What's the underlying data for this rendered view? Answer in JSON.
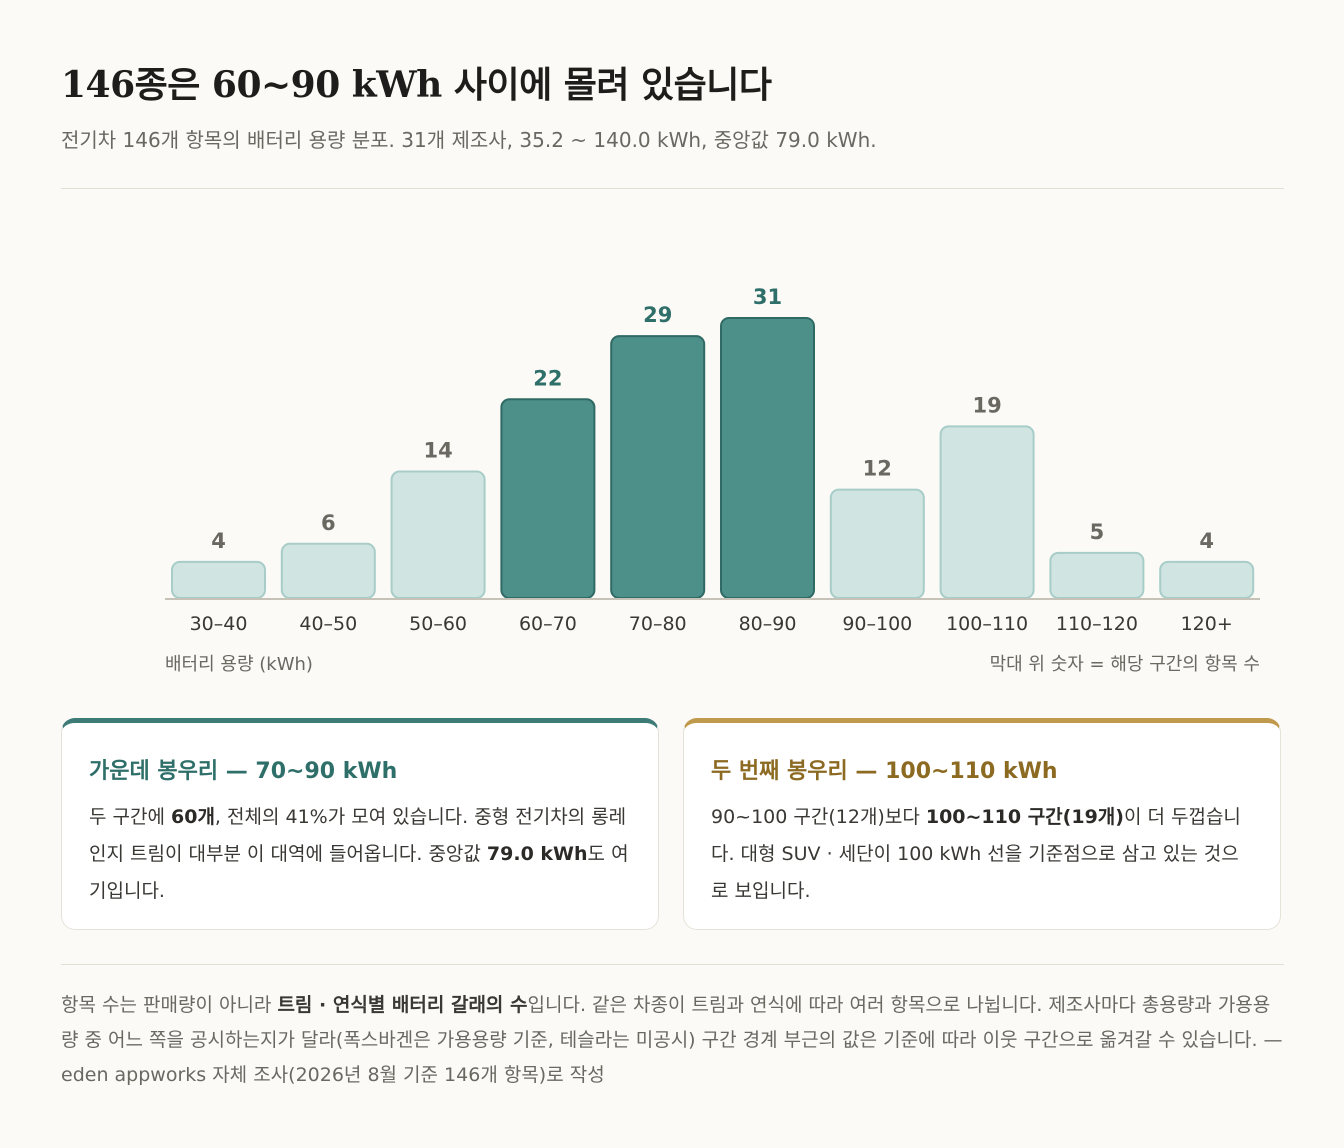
{
  "header": {
    "title": "146종은 60~90 kWh 사이에 몰려 있습니다",
    "subtitle": "전기차 146개 항목의 배터리 용량 분포. 31개 제조사, 35.2 ~ 140.0 kWh, 중앙값 79.0 kWh."
  },
  "chart_data": {
    "type": "bar",
    "categories": [
      "30–40",
      "40–50",
      "50–60",
      "60–70",
      "70–80",
      "80–90",
      "90–100",
      "100–110",
      "110–120",
      "120+"
    ],
    "values": [
      4,
      6,
      14,
      22,
      29,
      31,
      12,
      19,
      5,
      4
    ],
    "highlighted": [
      false,
      false,
      false,
      true,
      true,
      true,
      false,
      false,
      false,
      false
    ],
    "xlabel": "배터리 용량 (kWh)",
    "note": "막대 위 숫자 = 해당 구간의 항목 수",
    "ylim": [
      0,
      31
    ],
    "grid": false,
    "colors": {
      "highlight_fill": "#4d8f89",
      "highlight_stroke": "#2f6a65",
      "base_fill": "#d0e4e1",
      "base_stroke": "#a8cdc8",
      "highlight_label": "#2f6f6a",
      "base_label": "#6b6862",
      "baseline": "#c7c2b8"
    }
  },
  "cards": {
    "left": {
      "title": "가운데 봉우리 — 70~90 kWh",
      "t1": "두 구간에 ",
      "b1": "60개",
      "t2": ", 전체의 41%가 모여 있습니다. 중형 전기차의 롱레인지 트림이 대부분 이 대역에 들어옵니다. 중앙값 ",
      "b2": "79.0 kWh",
      "t3": "도 여기입니다."
    },
    "right": {
      "title": "두 번째 봉우리 — 100~110 kWh",
      "t1": "90~100 구간(12개)보다 ",
      "b1": "100~110 구간(19개)",
      "t2": "이 더 두껍습니다. 대형 SUV · 세단이 100 kWh 선을 기준점으로 삼고 있는 것으로 보입니다."
    }
  },
  "footnote": {
    "t1": "항목 수는 판매량이 아니라 ",
    "b1": "트림 · 연식별 배터리 갈래의 수",
    "t2": "입니다. 같은 차종이 트림과 연식에 따라 여러 항목으로 나뉩니다. 제조사마다 총용량과 가용용량 중 어느 쪽을 공시하는지가 달라(폭스바겐은 가용용량 기준, 테슬라는 미공시) 구간 경계 부근의 값은 기준에 따라 이웃 구간으로 옮겨갈 수 있습니다. — eden appworks 자체 조사(2026년 8월 기준 146개 항목)로 작성"
  },
  "colors": {
    "accent_teal": "#3d7b76",
    "accent_gold": "#c09a4c",
    "background": "#fbfaf6"
  }
}
